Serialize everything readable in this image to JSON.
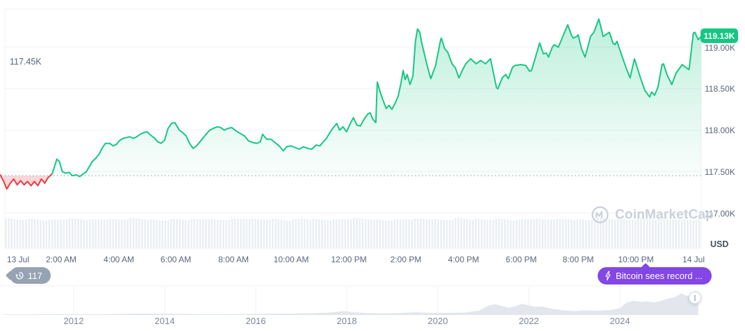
{
  "watermark": {
    "text": "CoinMarketCap"
  },
  "badges": {
    "history": {
      "count": "117"
    },
    "news": {
      "label": "Bitcoin sees record ..."
    }
  },
  "colors": {
    "up": "#16c784",
    "down": "#ea3943",
    "up_fill_top_opacity": 0.28,
    "down_fill": "rgba(234,57,67,0.20)",
    "grid": "#eff2f5",
    "axis_text": "#58667e",
    "baseline_dots": "#9aa3b2",
    "volume_bar": "#ebeef2",
    "navigator_fill": "#e3e7ed",
    "navigator_grid": "#eff2f5",
    "year_text": "#7c8799",
    "news_badge_bg": "#8247e5",
    "history_badge_bg": "#97a3b3",
    "watermark_text": "#cad1dc",
    "current_price_bg": "#16c784"
  },
  "chart_data": {
    "type": "area",
    "x_axis": {
      "ticks": [
        {
          "label": "13 Jul",
          "t": 0
        },
        {
          "label": "2:00 AM",
          "t": 2
        },
        {
          "label": "4:00 AM",
          "t": 4
        },
        {
          "label": "6:00 AM",
          "t": 6
        },
        {
          "label": "8:00 AM",
          "t": 8
        },
        {
          "label": "10:00 AM",
          "t": 10
        },
        {
          "label": "12:00 PM",
          "t": 12
        },
        {
          "label": "2:00 PM",
          "t": 14
        },
        {
          "label": "4:00 PM",
          "t": 16
        },
        {
          "label": "6:00 PM",
          "t": 18
        },
        {
          "label": "8:00 PM",
          "t": 20
        },
        {
          "label": "10:00 PM",
          "t": 22
        },
        {
          "label": "14 Jul",
          "t": 24
        }
      ]
    },
    "y_axis": {
      "unit": "USD",
      "ticks": [
        {
          "label": "119.00K",
          "value": 119.0
        },
        {
          "label": "118.50K",
          "value": 118.5
        },
        {
          "label": "118.00K",
          "value": 118.0
        },
        {
          "label": "117.50K",
          "value": 117.5
        },
        {
          "label": "117.00K",
          "value": 117.0
        }
      ],
      "range": [
        116.9,
        119.45
      ]
    },
    "baseline": {
      "label": "117.45K",
      "value": 117.45
    },
    "current_price": {
      "label": "119.13K",
      "value": 119.13
    },
    "series": [
      {
        "name": "BTC price (USD, thousands)",
        "cross_t": 1.68,
        "points": [
          [
            -0.12,
            117.46
          ],
          [
            0.0,
            117.38
          ],
          [
            0.11,
            117.29
          ],
          [
            0.23,
            117.36
          ],
          [
            0.35,
            117.41
          ],
          [
            0.47,
            117.34
          ],
          [
            0.59,
            117.39
          ],
          [
            0.71,
            117.34
          ],
          [
            0.83,
            117.38
          ],
          [
            0.95,
            117.33
          ],
          [
            1.07,
            117.38
          ],
          [
            1.19,
            117.33
          ],
          [
            1.31,
            117.41
          ],
          [
            1.43,
            117.36
          ],
          [
            1.55,
            117.43
          ],
          [
            1.68,
            117.47
          ],
          [
            1.75,
            117.54
          ],
          [
            1.85,
            117.65
          ],
          [
            1.94,
            117.62
          ],
          [
            2.04,
            117.5
          ],
          [
            2.16,
            117.48
          ],
          [
            2.28,
            117.49
          ],
          [
            2.38,
            117.45
          ],
          [
            2.52,
            117.46
          ],
          [
            2.65,
            117.44
          ],
          [
            2.76,
            117.47
          ],
          [
            2.88,
            117.5
          ],
          [
            2.98,
            117.56
          ],
          [
            3.08,
            117.62
          ],
          [
            3.2,
            117.66
          ],
          [
            3.32,
            117.71
          ],
          [
            3.44,
            117.79
          ],
          [
            3.54,
            117.84
          ],
          [
            3.69,
            117.84
          ],
          [
            3.81,
            117.81
          ],
          [
            3.93,
            117.83
          ],
          [
            4.02,
            117.87
          ],
          [
            4.15,
            117.9
          ],
          [
            4.27,
            117.91
          ],
          [
            4.39,
            117.92
          ],
          [
            4.51,
            117.9
          ],
          [
            4.63,
            117.92
          ],
          [
            4.75,
            117.95
          ],
          [
            4.87,
            117.97
          ],
          [
            4.99,
            117.98
          ],
          [
            5.11,
            117.94
          ],
          [
            5.23,
            117.91
          ],
          [
            5.36,
            117.86
          ],
          [
            5.48,
            117.84
          ],
          [
            5.6,
            117.88
          ],
          [
            5.72,
            118.02
          ],
          [
            5.84,
            118.08
          ],
          [
            5.96,
            118.09
          ],
          [
            6.11,
            118.0
          ],
          [
            6.23,
            117.97
          ],
          [
            6.35,
            117.93
          ],
          [
            6.47,
            117.84
          ],
          [
            6.59,
            117.78
          ],
          [
            6.71,
            117.81
          ],
          [
            6.88,
            117.88
          ],
          [
            7.02,
            117.94
          ],
          [
            7.17,
            118.0
          ],
          [
            7.29,
            118.02
          ],
          [
            7.43,
            118.04
          ],
          [
            7.55,
            118.03
          ],
          [
            7.68,
            118.0
          ],
          [
            7.8,
            118.02
          ],
          [
            7.94,
            118.03
          ],
          [
            8.09,
            117.99
          ],
          [
            8.23,
            117.96
          ],
          [
            8.38,
            117.93
          ],
          [
            8.52,
            117.87
          ],
          [
            8.67,
            117.85
          ],
          [
            8.81,
            117.84
          ],
          [
            8.93,
            117.86
          ],
          [
            9.01,
            117.95
          ],
          [
            9.15,
            117.89
          ],
          [
            9.3,
            117.89
          ],
          [
            9.44,
            117.85
          ],
          [
            9.59,
            117.81
          ],
          [
            9.73,
            117.75
          ],
          [
            9.85,
            117.8
          ],
          [
            10.0,
            117.81
          ],
          [
            10.14,
            117.79
          ],
          [
            10.29,
            117.77
          ],
          [
            10.43,
            117.8
          ],
          [
            10.58,
            117.78
          ],
          [
            10.72,
            117.77
          ],
          [
            10.87,
            117.82
          ],
          [
            11.0,
            117.81
          ],
          [
            11.23,
            117.9
          ],
          [
            11.35,
            117.97
          ],
          [
            11.47,
            118.03
          ],
          [
            11.59,
            118.08
          ],
          [
            11.69,
            118.0
          ],
          [
            11.81,
            118.04
          ],
          [
            11.93,
            117.98
          ],
          [
            12.05,
            118.07
          ],
          [
            12.17,
            118.15
          ],
          [
            12.29,
            118.06
          ],
          [
            12.41,
            118.05
          ],
          [
            12.54,
            118.13
          ],
          [
            12.66,
            118.19
          ],
          [
            12.75,
            118.21
          ],
          [
            12.85,
            118.13
          ],
          [
            12.95,
            118.09
          ],
          [
            13.0,
            118.58
          ],
          [
            13.1,
            118.46
          ],
          [
            13.19,
            118.37
          ],
          [
            13.31,
            118.26
          ],
          [
            13.41,
            118.3
          ],
          [
            13.51,
            118.25
          ],
          [
            13.63,
            118.33
          ],
          [
            13.73,
            118.41
          ],
          [
            13.82,
            118.56
          ],
          [
            13.9,
            118.72
          ],
          [
            13.97,
            118.61
          ],
          [
            14.04,
            118.67
          ],
          [
            14.14,
            118.55
          ],
          [
            14.24,
            118.65
          ],
          [
            14.33,
            119.07
          ],
          [
            14.4,
            119.22
          ],
          [
            14.48,
            119.18
          ],
          [
            14.55,
            119.05
          ],
          [
            14.72,
            118.8
          ],
          [
            14.86,
            118.62
          ],
          [
            15.03,
            118.78
          ],
          [
            15.2,
            119.08
          ],
          [
            15.23,
            119.11
          ],
          [
            15.35,
            118.98
          ],
          [
            15.45,
            118.94
          ],
          [
            15.6,
            118.8
          ],
          [
            15.72,
            118.75
          ],
          [
            15.84,
            118.63
          ],
          [
            15.96,
            118.72
          ],
          [
            16.08,
            118.8
          ],
          [
            16.25,
            118.86
          ],
          [
            16.44,
            118.8
          ],
          [
            16.6,
            118.84
          ],
          [
            16.77,
            118.8
          ],
          [
            16.94,
            118.86
          ],
          [
            17.15,
            118.51
          ],
          [
            17.2,
            118.5
          ],
          [
            17.35,
            118.63
          ],
          [
            17.47,
            118.67
          ],
          [
            17.56,
            118.62
          ],
          [
            17.71,
            118.76
          ],
          [
            17.81,
            118.78
          ],
          [
            18.0,
            118.79
          ],
          [
            18.17,
            118.78
          ],
          [
            18.3,
            118.71
          ],
          [
            18.37,
            118.72
          ],
          [
            18.65,
            119.05
          ],
          [
            18.78,
            118.92
          ],
          [
            18.88,
            118.93
          ],
          [
            18.96,
            118.88
          ],
          [
            19.09,
            119.0
          ],
          [
            19.16,
            119.03
          ],
          [
            19.25,
            119.01
          ],
          [
            19.3,
            119.0
          ],
          [
            19.41,
            119.09
          ],
          [
            19.53,
            119.19
          ],
          [
            19.63,
            119.27
          ],
          [
            19.75,
            119.15
          ],
          [
            19.82,
            119.11
          ],
          [
            19.94,
            119.13
          ],
          [
            19.99,
            119.15
          ],
          [
            20.11,
            118.98
          ],
          [
            20.23,
            118.88
          ],
          [
            20.35,
            119.03
          ],
          [
            20.42,
            119.13
          ],
          [
            20.54,
            119.18
          ],
          [
            20.71,
            119.34
          ],
          [
            20.79,
            119.23
          ],
          [
            20.86,
            119.13
          ],
          [
            21.08,
            119.18
          ],
          [
            21.2,
            119.05
          ],
          [
            21.27,
            119.03
          ],
          [
            21.34,
            119.07
          ],
          [
            21.51,
            118.9
          ],
          [
            21.68,
            118.73
          ],
          [
            21.8,
            118.63
          ],
          [
            21.95,
            118.86
          ],
          [
            22.16,
            118.63
          ],
          [
            22.31,
            118.48
          ],
          [
            22.48,
            118.4
          ],
          [
            22.55,
            118.46
          ],
          [
            22.65,
            118.42
          ],
          [
            22.77,
            118.52
          ],
          [
            22.91,
            118.79
          ],
          [
            22.96,
            118.8
          ],
          [
            23.08,
            118.67
          ],
          [
            23.25,
            118.55
          ],
          [
            23.4,
            118.69
          ],
          [
            23.57,
            118.77
          ],
          [
            23.61,
            118.79
          ],
          [
            23.76,
            118.75
          ],
          [
            23.85,
            118.73
          ],
          [
            24.0,
            119.17
          ],
          [
            24.05,
            119.18
          ],
          [
            24.17,
            119.09
          ],
          [
            24.27,
            119.13
          ]
        ]
      }
    ],
    "volume_envelope": [
      0.92,
      0.88,
      0.9,
      0.86,
      0.89,
      0.91,
      0.87,
      0.9,
      0.88,
      0.92,
      0.89,
      0.86,
      0.9,
      0.88,
      0.91,
      0.87,
      0.89,
      0.92,
      0.88,
      0.9,
      0.86,
      0.91,
      0.89,
      0.87,
      0.9,
      0.92,
      0.88,
      0.86,
      0.89,
      0.91,
      0.9,
      0.87,
      0.92,
      0.89,
      0.88,
      0.9,
      0.86,
      0.91,
      0.88,
      0.9,
      0.89,
      0.87,
      0.92,
      0.9,
      0.88,
      0.91,
      0.89,
      0.9,
      0.87,
      0.9
    ],
    "navigator": {
      "year_ticks": [
        2012,
        2014,
        2016,
        2018,
        2020,
        2022,
        2024
      ],
      "points": [
        [
          2010.45,
          0.03
        ],
        [
          2011,
          0.03
        ],
        [
          2011.5,
          0.04
        ],
        [
          2012,
          0.04
        ],
        [
          2012.5,
          0.03
        ],
        [
          2013,
          0.05
        ],
        [
          2013.4,
          0.07
        ],
        [
          2013.9,
          0.06
        ],
        [
          2014.3,
          0.05
        ],
        [
          2014.8,
          0.04
        ],
        [
          2015.3,
          0.04
        ],
        [
          2015.8,
          0.05
        ],
        [
          2016.3,
          0.06
        ],
        [
          2016.8,
          0.07
        ],
        [
          2017.2,
          0.08
        ],
        [
          2017.6,
          0.11
        ],
        [
          2017.95,
          0.17
        ],
        [
          2018.1,
          0.13
        ],
        [
          2018.4,
          0.09
        ],
        [
          2018.8,
          0.07
        ],
        [
          2019.2,
          0.09
        ],
        [
          2019.5,
          0.12
        ],
        [
          2019.8,
          0.1
        ],
        [
          2020.2,
          0.09
        ],
        [
          2020.6,
          0.11
        ],
        [
          2020.9,
          0.19
        ],
        [
          2021.1,
          0.4
        ],
        [
          2021.25,
          0.48
        ],
        [
          2021.4,
          0.4
        ],
        [
          2021.55,
          0.32
        ],
        [
          2021.7,
          0.38
        ],
        [
          2021.85,
          0.5
        ],
        [
          2022.0,
          0.42
        ],
        [
          2022.15,
          0.36
        ],
        [
          2022.3,
          0.38
        ],
        [
          2022.45,
          0.3
        ],
        [
          2022.6,
          0.25
        ],
        [
          2022.8,
          0.2
        ],
        [
          2023.0,
          0.17
        ],
        [
          2023.2,
          0.21
        ],
        [
          2023.5,
          0.19
        ],
        [
          2023.8,
          0.22
        ],
        [
          2024.0,
          0.3
        ],
        [
          2024.15,
          0.55
        ],
        [
          2024.3,
          0.62
        ],
        [
          2024.45,
          0.58
        ],
        [
          2024.6,
          0.6
        ],
        [
          2024.75,
          0.55
        ],
        [
          2024.9,
          0.62
        ],
        [
          2025.05,
          0.72
        ],
        [
          2025.2,
          0.78
        ],
        [
          2025.35,
          0.95
        ],
        [
          2025.45,
          0.85
        ],
        [
          2025.55,
          0.82
        ],
        [
          2025.65,
          1.0
        ],
        [
          2025.72,
          0.92
        ]
      ]
    }
  }
}
